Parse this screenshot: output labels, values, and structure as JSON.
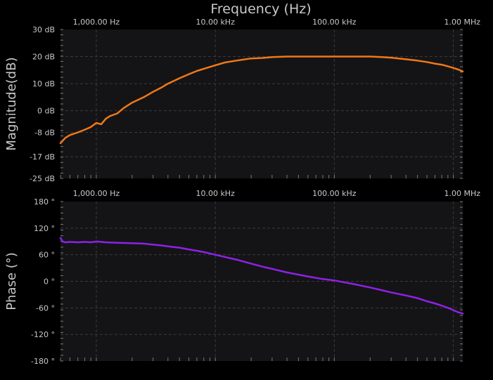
{
  "title": "Frequency (Hz)",
  "chart_data": [
    {
      "type": "line",
      "name": "magnitude",
      "xlabel": "Frequency (Hz)",
      "ylabel": "Magnitude(dB)",
      "x_scale": "log",
      "xlim": [
        500,
        1200000
      ],
      "ylim": [
        -25,
        30
      ],
      "x_tick_values": [
        1000,
        10000,
        100000,
        1000000
      ],
      "x_tick_labels": [
        "1,000.00 Hz",
        "10.00 kHz",
        "100.00 kHz",
        "1.00 MHz"
      ],
      "y_tick_values": [
        30,
        20,
        10,
        0,
        -8,
        -17,
        -25
      ],
      "y_tick_labels": [
        "30 dB",
        "20 dB",
        "10 dB",
        "0 dB",
        "-8 dB",
        "-17 dB",
        "-25 dB"
      ],
      "grid": true,
      "color": "#f07818",
      "x": [
        500,
        550,
        600,
        700,
        800,
        900,
        1000,
        1100,
        1200,
        1300,
        1500,
        1700,
        2000,
        2500,
        3000,
        3500,
        4000,
        5000,
        6000,
        7000,
        8000,
        10000,
        12000,
        15000,
        20000,
        25000,
        30000,
        40000,
        50000,
        60000,
        80000,
        100000,
        150000,
        200000,
        250000,
        300000,
        400000,
        500000,
        600000,
        700000,
        800000,
        900000,
        1000000,
        1100000,
        1200000
      ],
      "y": [
        -12,
        -10,
        -9,
        -8,
        -7,
        -6,
        -4.5,
        -5,
        -3,
        -2,
        -1,
        1,
        3,
        5,
        7,
        8.5,
        10,
        12,
        13.5,
        14.7,
        15.5,
        16.8,
        17.8,
        18.5,
        19.3,
        19.5,
        19.8,
        20,
        20,
        20,
        20,
        20,
        20,
        20,
        19.8,
        19.6,
        19,
        18.5,
        18,
        17.4,
        17,
        16.4,
        15.8,
        15.2,
        14.5
      ]
    },
    {
      "type": "line",
      "name": "phase",
      "xlabel": "",
      "ylabel": "Phase (°)",
      "x_scale": "log",
      "xlim": [
        500,
        1200000
      ],
      "ylim": [
        -180,
        180
      ],
      "x_tick_values": [
        1000,
        10000,
        100000,
        1000000
      ],
      "x_tick_labels": [
        "1,000.00 Hz",
        "10.00 kHz",
        "100.00 kHz",
        "1.00 MHz"
      ],
      "y_tick_values": [
        180,
        120,
        60,
        0,
        -60,
        -120,
        -180
      ],
      "y_tick_labels": [
        "180 °",
        "120 °",
        "60 °",
        "0 °",
        "-60 °",
        "-120 °",
        "-180 °"
      ],
      "grid": true,
      "color": "#9020e8",
      "x": [
        500,
        520,
        550,
        600,
        700,
        800,
        900,
        1000,
        1200,
        1500,
        2000,
        2500,
        3000,
        3500,
        4000,
        5000,
        6000,
        7000,
        8000,
        10000,
        12000,
        15000,
        20000,
        25000,
        30000,
        40000,
        50000,
        60000,
        80000,
        100000,
        120000,
        150000,
        200000,
        250000,
        300000,
        400000,
        500000,
        600000,
        700000,
        800000,
        900000,
        1000000,
        1100000,
        1200000
      ],
      "y": [
        98,
        90,
        88,
        89,
        88,
        89,
        88,
        90,
        88,
        87,
        86,
        85,
        83,
        81,
        79,
        76,
        72,
        69,
        66,
        60,
        55,
        49,
        40,
        33,
        28,
        20,
        15,
        11,
        5,
        2,
        -2,
        -7,
        -14,
        -20,
        -25,
        -32,
        -38,
        -45,
        -50,
        -55,
        -60,
        -65,
        -70,
        -73
      ]
    }
  ]
}
